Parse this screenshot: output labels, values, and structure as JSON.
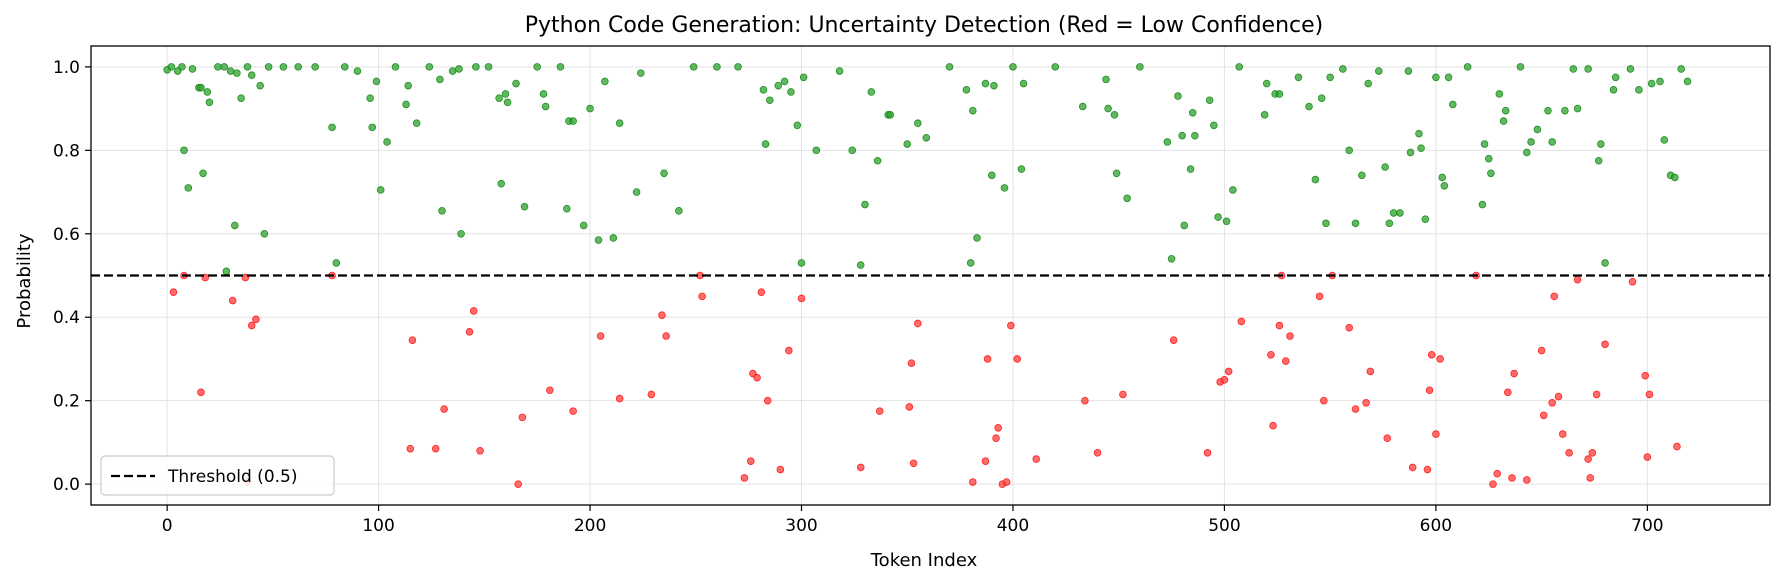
{
  "chart_data": {
    "type": "scatter",
    "title": "Python Code Generation: Uncertainty Detection (Red = Low Confidence)",
    "xlabel": "Token Index",
    "ylabel": "Probability",
    "xlim": [
      -36,
      758
    ],
    "ylim": [
      -0.05,
      1.05
    ],
    "xticks": [
      0,
      100,
      200,
      300,
      400,
      500,
      600,
      700
    ],
    "yticks": [
      0.0,
      0.2,
      0.4,
      0.6,
      0.8,
      1.0
    ],
    "grid": true,
    "threshold": {
      "value": 0.5,
      "label": "Threshold (0.5)"
    },
    "legend_position": "lower-left",
    "colors": {
      "high": "#008000",
      "low": "#ff0000",
      "threshold": "#000000"
    },
    "series": [
      {
        "key": "high",
        "points": [
          [
            0,
            0.993
          ],
          [
            2,
            1.0
          ],
          [
            5,
            0.99
          ],
          [
            7,
            1.0
          ],
          [
            8,
            0.8
          ],
          [
            10,
            0.71
          ],
          [
            12,
            0.995
          ],
          [
            15,
            0.95
          ],
          [
            16,
            0.95
          ],
          [
            17,
            0.745
          ],
          [
            19,
            0.94
          ],
          [
            20,
            0.915
          ],
          [
            24,
            1.0
          ],
          [
            27,
            1.0
          ],
          [
            28,
            0.51
          ],
          [
            30,
            0.99
          ],
          [
            32,
            0.62
          ],
          [
            33,
            0.985
          ],
          [
            35,
            0.925
          ],
          [
            38,
            1.0
          ],
          [
            40,
            0.98
          ],
          [
            44,
            0.955
          ],
          [
            46,
            0.6
          ],
          [
            48,
            1.0
          ],
          [
            55,
            1.0
          ],
          [
            62,
            1.0
          ],
          [
            70,
            1.0
          ],
          [
            78,
            0.855
          ],
          [
            80,
            0.53
          ],
          [
            84,
            1.0
          ],
          [
            90,
            0.99
          ],
          [
            96,
            0.925
          ],
          [
            97,
            0.855
          ],
          [
            99,
            0.965
          ],
          [
            101,
            0.705
          ],
          [
            104,
            0.82
          ],
          [
            108,
            1.0
          ],
          [
            113,
            0.91
          ],
          [
            114,
            0.955
          ],
          [
            118,
            0.865
          ],
          [
            124,
            1.0
          ],
          [
            129,
            0.97
          ],
          [
            130,
            0.655
          ],
          [
            135,
            0.99
          ],
          [
            138,
            0.995
          ],
          [
            139,
            0.6
          ],
          [
            146,
            1.0
          ],
          [
            152,
            1.0
          ],
          [
            157,
            0.925
          ],
          [
            158,
            0.72
          ],
          [
            160,
            0.935
          ],
          [
            161,
            0.915
          ],
          [
            165,
            0.96
          ],
          [
            169,
            0.665
          ],
          [
            175,
            1.0
          ],
          [
            178,
            0.935
          ],
          [
            179,
            0.905
          ],
          [
            186,
            1.0
          ],
          [
            189,
            0.66
          ],
          [
            190,
            0.87
          ],
          [
            192,
            0.87
          ],
          [
            197,
            0.62
          ],
          [
            200,
            0.9
          ],
          [
            204,
            0.585
          ],
          [
            207,
            0.965
          ],
          [
            211,
            0.59
          ],
          [
            214,
            0.865
          ],
          [
            222,
            0.7
          ],
          [
            224,
            0.985
          ],
          [
            235,
            0.745
          ],
          [
            242,
            0.655
          ],
          [
            249,
            1.0
          ],
          [
            260,
            1.0
          ],
          [
            270,
            1.0
          ],
          [
            282,
            0.945
          ],
          [
            283,
            0.815
          ],
          [
            285,
            0.92
          ],
          [
            289,
            0.955
          ],
          [
            292,
            0.965
          ],
          [
            295,
            0.94
          ],
          [
            298,
            0.86
          ],
          [
            300,
            0.53
          ],
          [
            301,
            0.975
          ],
          [
            307,
            0.8
          ],
          [
            318,
            0.99
          ],
          [
            324,
            0.8
          ],
          [
            328,
            0.525
          ],
          [
            330,
            0.67
          ],
          [
            333,
            0.94
          ],
          [
            336,
            0.775
          ],
          [
            341,
            0.885
          ],
          [
            342,
            0.885
          ],
          [
            350,
            0.815
          ],
          [
            355,
            0.865
          ],
          [
            359,
            0.83
          ],
          [
            370,
            1.0
          ],
          [
            378,
            0.945
          ],
          [
            380,
            0.53
          ],
          [
            381,
            0.895
          ],
          [
            383,
            0.59
          ],
          [
            387,
            0.96
          ],
          [
            390,
            0.74
          ],
          [
            391,
            0.955
          ],
          [
            396,
            0.71
          ],
          [
            400,
            1.0
          ],
          [
            404,
            0.755
          ],
          [
            405,
            0.96
          ],
          [
            420,
            1.0
          ],
          [
            433,
            0.905
          ],
          [
            444,
            0.97
          ],
          [
            445,
            0.9
          ],
          [
            448,
            0.885
          ],
          [
            449,
            0.745
          ],
          [
            454,
            0.685
          ],
          [
            460,
            1.0
          ],
          [
            473,
            0.82
          ],
          [
            475,
            0.54
          ],
          [
            478,
            0.93
          ],
          [
            480,
            0.835
          ],
          [
            481,
            0.62
          ],
          [
            484,
            0.755
          ],
          [
            485,
            0.89
          ],
          [
            486,
            0.835
          ],
          [
            493,
            0.92
          ],
          [
            495,
            0.86
          ],
          [
            497,
            0.64
          ],
          [
            501,
            0.63
          ],
          [
            504,
            0.705
          ],
          [
            507,
            1.0
          ],
          [
            519,
            0.885
          ],
          [
            520,
            0.96
          ],
          [
            524,
            0.935
          ],
          [
            526,
            0.935
          ],
          [
            535,
            0.975
          ],
          [
            540,
            0.905
          ],
          [
            543,
            0.73
          ],
          [
            546,
            0.925
          ],
          [
            548,
            0.625
          ],
          [
            550,
            0.975
          ],
          [
            556,
            0.995
          ],
          [
            559,
            0.8
          ],
          [
            562,
            0.625
          ],
          [
            565,
            0.74
          ],
          [
            568,
            0.96
          ],
          [
            573,
            0.99
          ],
          [
            576,
            0.76
          ],
          [
            578,
            0.625
          ],
          [
            580,
            0.65
          ],
          [
            583,
            0.65
          ],
          [
            587,
            0.99
          ],
          [
            588,
            0.795
          ],
          [
            592,
            0.84
          ],
          [
            593,
            0.805
          ],
          [
            595,
            0.635
          ],
          [
            600,
            0.975
          ],
          [
            603,
            0.735
          ],
          [
            604,
            0.715
          ],
          [
            606,
            0.975
          ],
          [
            608,
            0.91
          ],
          [
            615,
            1.0
          ],
          [
            622,
            0.67
          ],
          [
            623,
            0.815
          ],
          [
            625,
            0.78
          ],
          [
            626,
            0.745
          ],
          [
            630,
            0.935
          ],
          [
            632,
            0.87
          ],
          [
            633,
            0.895
          ],
          [
            640,
            1.0
          ],
          [
            643,
            0.795
          ],
          [
            645,
            0.82
          ],
          [
            648,
            0.85
          ],
          [
            653,
            0.895
          ],
          [
            655,
            0.82
          ],
          [
            661,
            0.895
          ],
          [
            665,
            0.995
          ],
          [
            667,
            0.9
          ],
          [
            672,
            0.995
          ],
          [
            677,
            0.775
          ],
          [
            678,
            0.815
          ],
          [
            680,
            0.53
          ],
          [
            684,
            0.945
          ],
          [
            685,
            0.975
          ],
          [
            692,
            0.995
          ],
          [
            696,
            0.945
          ],
          [
            702,
            0.96
          ],
          [
            706,
            0.965
          ],
          [
            708,
            0.825
          ],
          [
            711,
            0.74
          ],
          [
            713,
            0.735
          ],
          [
            716,
            0.995
          ],
          [
            719,
            0.965
          ]
        ]
      },
      {
        "key": "low",
        "points": [
          [
            3,
            0.46
          ],
          [
            8,
            0.5
          ],
          [
            16,
            0.22
          ],
          [
            18,
            0.495
          ],
          [
            31,
            0.44
          ],
          [
            37,
            0.495
          ],
          [
            38,
            0.005
          ],
          [
            40,
            0.38
          ],
          [
            42,
            0.395
          ],
          [
            78,
            0.5
          ],
          [
            115,
            0.085
          ],
          [
            116,
            0.345
          ],
          [
            127,
            0.085
          ],
          [
            131,
            0.18
          ],
          [
            143,
            0.365
          ],
          [
            145,
            0.415
          ],
          [
            148,
            0.08
          ],
          [
            166,
            0.0
          ],
          [
            168,
            0.16
          ],
          [
            181,
            0.225
          ],
          [
            192,
            0.175
          ],
          [
            205,
            0.355
          ],
          [
            214,
            0.205
          ],
          [
            229,
            0.215
          ],
          [
            234,
            0.405
          ],
          [
            236,
            0.355
          ],
          [
            252,
            0.5
          ],
          [
            253,
            0.45
          ],
          [
            273,
            0.015
          ],
          [
            276,
            0.055
          ],
          [
            277,
            0.265
          ],
          [
            279,
            0.255
          ],
          [
            281,
            0.46
          ],
          [
            284,
            0.2
          ],
          [
            290,
            0.035
          ],
          [
            294,
            0.32
          ],
          [
            300,
            0.445
          ],
          [
            328,
            0.04
          ],
          [
            337,
            0.175
          ],
          [
            351,
            0.185
          ],
          [
            352,
            0.29
          ],
          [
            353,
            0.05
          ],
          [
            355,
            0.385
          ],
          [
            381,
            0.005
          ],
          [
            387,
            0.055
          ],
          [
            388,
            0.3
          ],
          [
            392,
            0.11
          ],
          [
            393,
            0.135
          ],
          [
            395,
            0.0
          ],
          [
            397,
            0.005
          ],
          [
            399,
            0.38
          ],
          [
            402,
            0.3
          ],
          [
            411,
            0.06
          ],
          [
            434,
            0.2
          ],
          [
            440,
            0.075
          ],
          [
            452,
            0.215
          ],
          [
            476,
            0.345
          ],
          [
            492,
            0.075
          ],
          [
            498,
            0.245
          ],
          [
            500,
            0.25
          ],
          [
            502,
            0.27
          ],
          [
            508,
            0.39
          ],
          [
            522,
            0.31
          ],
          [
            523,
            0.14
          ],
          [
            526,
            0.38
          ],
          [
            527,
            0.5
          ],
          [
            529,
            0.295
          ],
          [
            531,
            0.355
          ],
          [
            545,
            0.45
          ],
          [
            547,
            0.2
          ],
          [
            551,
            0.5
          ],
          [
            559,
            0.375
          ],
          [
            562,
            0.18
          ],
          [
            567,
            0.195
          ],
          [
            569,
            0.27
          ],
          [
            577,
            0.11
          ],
          [
            589,
            0.04
          ],
          [
            596,
            0.035
          ],
          [
            597,
            0.225
          ],
          [
            598,
            0.31
          ],
          [
            600,
            0.12
          ],
          [
            602,
            0.3
          ],
          [
            619,
            0.5
          ],
          [
            627,
            0.0
          ],
          [
            629,
            0.025
          ],
          [
            634,
            0.22
          ],
          [
            636,
            0.015
          ],
          [
            637,
            0.265
          ],
          [
            643,
            0.01
          ],
          [
            650,
            0.32
          ],
          [
            651,
            0.165
          ],
          [
            655,
            0.195
          ],
          [
            656,
            0.45
          ],
          [
            658,
            0.21
          ],
          [
            660,
            0.12
          ],
          [
            663,
            0.075
          ],
          [
            667,
            0.49
          ],
          [
            672,
            0.06
          ],
          [
            673,
            0.015
          ],
          [
            674,
            0.075
          ],
          [
            676,
            0.215
          ],
          [
            680,
            0.335
          ],
          [
            693,
            0.485
          ],
          [
            699,
            0.26
          ],
          [
            700,
            0.065
          ],
          [
            701,
            0.215
          ],
          [
            714,
            0.09
          ]
        ]
      }
    ]
  }
}
